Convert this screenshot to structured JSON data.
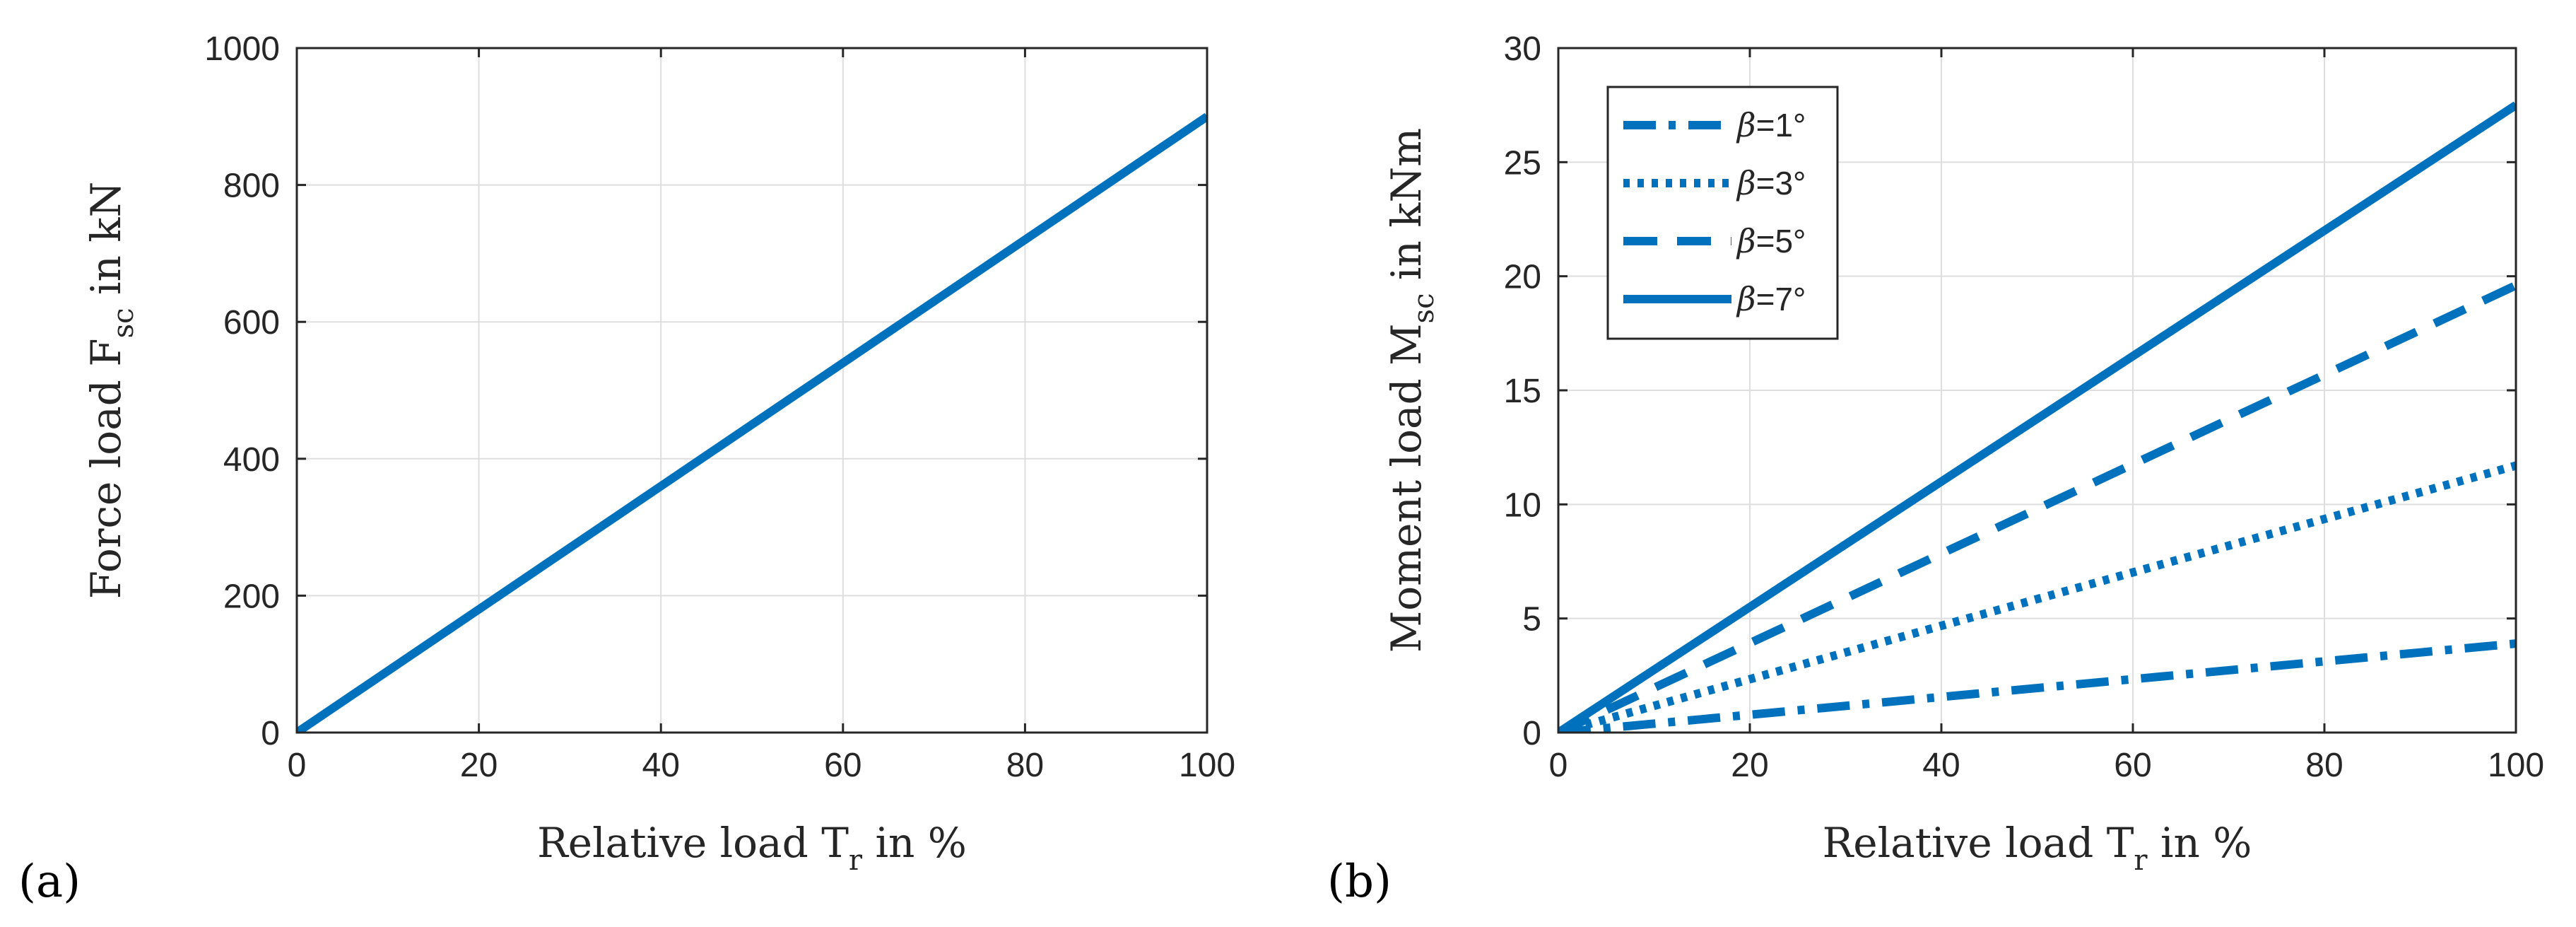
{
  "colors": {
    "line": "#0072BD",
    "grid": "#dedede",
    "axis": "#262626"
  },
  "chart_data": [
    {
      "type": "line",
      "panel_label": "(a)",
      "xlabel_main": "Relative load T",
      "xlabel_sub": "r",
      "xlabel_suffix": " in %",
      "ylabel_main": "Force load F",
      "ylabel_sub": "sc",
      "ylabel_suffix": " in kN",
      "xlim": [
        0,
        100
      ],
      "ylim": [
        0,
        1000
      ],
      "xticks": [
        0,
        20,
        40,
        60,
        80,
        100
      ],
      "yticks": [
        0,
        200,
        400,
        600,
        800,
        1000
      ],
      "grid": true,
      "series": [
        {
          "name": "F_sc",
          "style": "solid",
          "x": [
            0,
            100
          ],
          "y": [
            0,
            900
          ]
        }
      ]
    },
    {
      "type": "line",
      "panel_label": "(b)",
      "xlabel_main": "Relative load T",
      "xlabel_sub": "r",
      "xlabel_suffix": " in %",
      "ylabel_main": "Moment load M",
      "ylabel_sub": "sc",
      "ylabel_suffix": " in kNm",
      "xlim": [
        0,
        100
      ],
      "ylim": [
        0,
        30
      ],
      "xticks": [
        0,
        20,
        40,
        60,
        80,
        100
      ],
      "yticks": [
        0,
        5,
        10,
        15,
        20,
        25,
        30
      ],
      "grid": true,
      "legend_position": "top-left",
      "series": [
        {
          "name": "β=1°",
          "beta": "β",
          "rest": "=1°",
          "style": "dashdot",
          "x": [
            0,
            100
          ],
          "y": [
            0,
            3.9
          ]
        },
        {
          "name": "β=3°",
          "beta": "β",
          "rest": "=3°",
          "style": "dotted",
          "x": [
            0,
            100
          ],
          "y": [
            0,
            11.7
          ]
        },
        {
          "name": "β=5°",
          "beta": "β",
          "rest": "=5°",
          "style": "dashed",
          "x": [
            0,
            100
          ],
          "y": [
            0,
            19.6
          ]
        },
        {
          "name": "β=7°",
          "beta": "β",
          "rest": "=7°",
          "style": "solid",
          "x": [
            0,
            100
          ],
          "y": [
            0,
            27.5
          ]
        }
      ]
    }
  ]
}
